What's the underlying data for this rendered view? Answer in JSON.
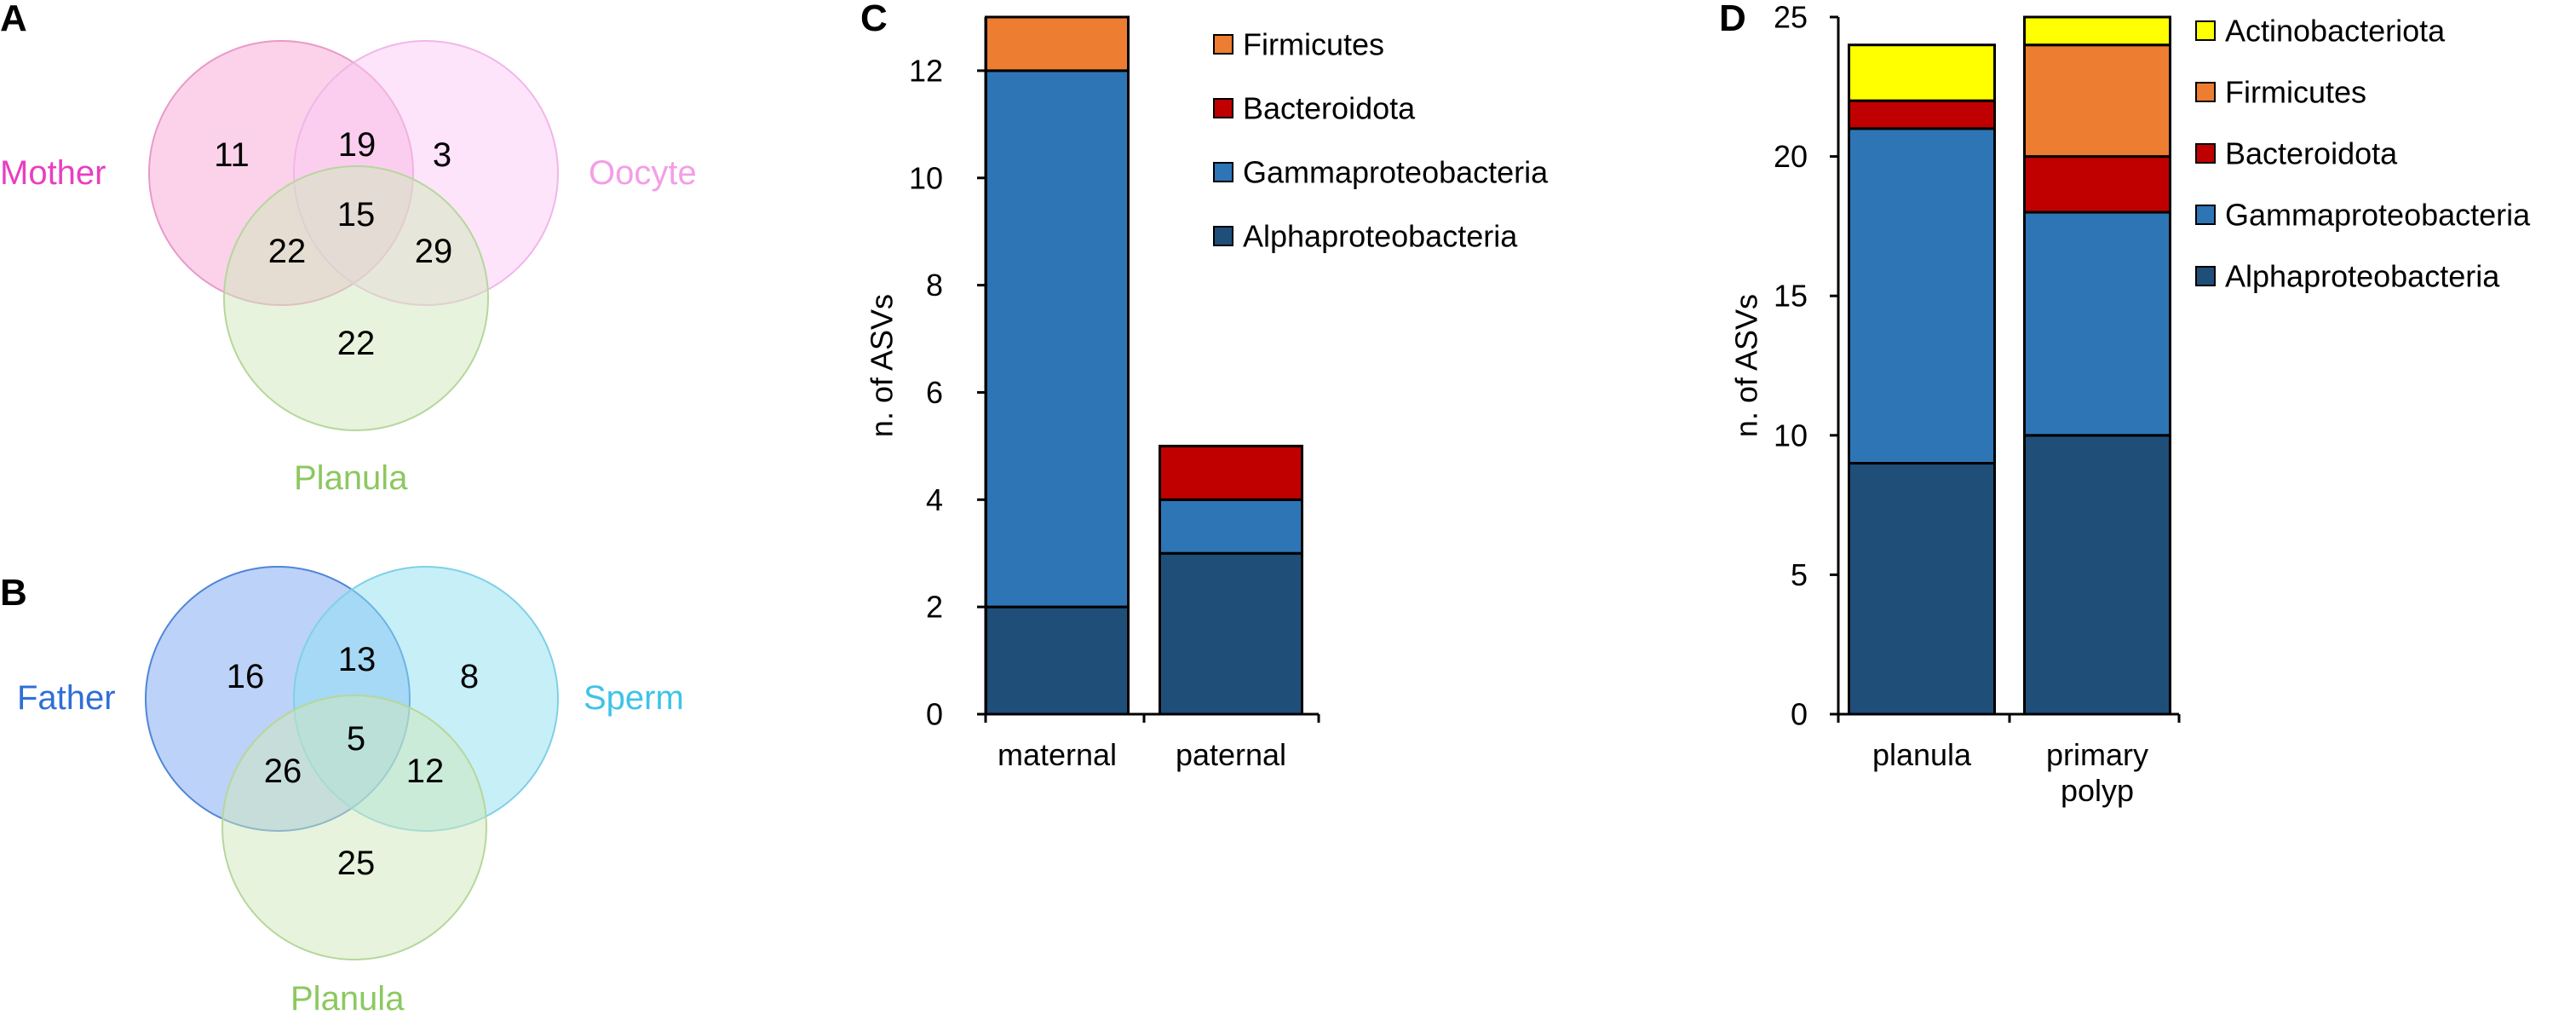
{
  "panels": {
    "A": {
      "letter": "A",
      "labels": {
        "mother": "Mother",
        "oocyte": "Oocyte",
        "planula": "Planula"
      },
      "label_colors": {
        "mother": "#e83fc0",
        "oocyte": "#f39ee6",
        "planula": "#8cc85f"
      },
      "circle_colors": {
        "mother": "#f7a6d6",
        "oocyte": "#fbc9f5",
        "planula": "#cfe8b9"
      },
      "counts": {
        "mother_only": "11",
        "mother_oocyte": "19",
        "oocyte_only": "3",
        "all_three": "15",
        "mother_planula": "22",
        "oocyte_planula": "29",
        "planula_only": "22"
      }
    },
    "B": {
      "letter": "B",
      "labels": {
        "father": "Father",
        "sperm": "Sperm",
        "planula": "Planula"
      },
      "label_colors": {
        "father": "#2f6fd6",
        "sperm": "#3ec3e8",
        "planula": "#8cc85f"
      },
      "circle_colors": {
        "father": "#7aa5f2",
        "sperm": "#8fdff2",
        "planula": "#cfe8b9"
      },
      "counts": {
        "father_only": "16",
        "father_sperm": "13",
        "sperm_only": "8",
        "all_three": "5",
        "father_planula": "26",
        "sperm_planula": "12",
        "planula_only": "25"
      }
    },
    "C": {
      "letter": "C"
    },
    "D": {
      "letter": "D"
    }
  },
  "colors": {
    "Actinobacteriota": "#ffff00",
    "Firmicutes": "#ed7d31",
    "Bacteroidota": "#c00000",
    "Gammaproteobacteria": "#2e75b6",
    "Alphaproteobacteria": "#1f4e79"
  },
  "chart_data": [
    {
      "panel": "C",
      "type": "bar",
      "stacked": true,
      "categories": [
        "maternal",
        "paternal"
      ],
      "series": [
        {
          "name": "Alphaproteobacteria",
          "values": [
            2,
            3
          ]
        },
        {
          "name": "Gammaproteobacteria",
          "values": [
            10,
            1
          ]
        },
        {
          "name": "Bacteroidota",
          "values": [
            0,
            1
          ]
        },
        {
          "name": "Firmicutes",
          "values": [
            1,
            0
          ]
        }
      ],
      "legend": [
        "Firmicutes",
        "Bacteroidota",
        "Gammaproteobacteria",
        "Alphaproteobacteria"
      ],
      "legend_placement": "top-right",
      "title": "",
      "xlabel": "",
      "ylabel": "n. of ASVs",
      "ylim": [
        0,
        13
      ],
      "yticks": [
        0,
        2,
        4,
        6,
        8,
        10,
        12
      ],
      "grid": false
    },
    {
      "panel": "D",
      "type": "bar",
      "stacked": true,
      "categories": [
        [
          "planula"
        ],
        [
          "primary",
          "polyp"
        ]
      ],
      "series": [
        {
          "name": "Alphaproteobacteria",
          "values": [
            9,
            10
          ]
        },
        {
          "name": "Gammaproteobacteria",
          "values": [
            12,
            8
          ]
        },
        {
          "name": "Bacteroidota",
          "values": [
            1,
            2
          ]
        },
        {
          "name": "Firmicutes",
          "values": [
            0,
            4
          ]
        },
        {
          "name": "Actinobacteriota",
          "values": [
            2,
            1
          ]
        }
      ],
      "legend": [
        "Actinobacteriota",
        "Firmicutes",
        "Bacteroidota",
        "Gammaproteobacteria",
        "Alphaproteobacteria"
      ],
      "legend_placement": "right",
      "title": "",
      "xlabel": "",
      "ylabel": "n. of ASVs",
      "ylim": [
        0,
        25
      ],
      "yticks": [
        0,
        5,
        10,
        15,
        20,
        25
      ],
      "grid": false
    }
  ]
}
